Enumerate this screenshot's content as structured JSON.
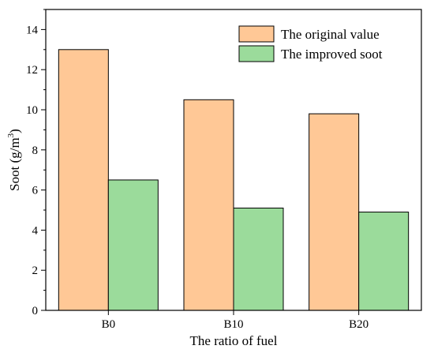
{
  "chart_data": {
    "type": "bar",
    "title": "",
    "xlabel": "The ratio of fuel",
    "ylabel": "Soot (g/m",
    "ylabel_sup": "3",
    "ylabel_end": ")",
    "categories": [
      "B0",
      "B10",
      "B20"
    ],
    "series": [
      {
        "name": "The original value",
        "values": [
          13.0,
          10.5,
          9.8
        ],
        "color": "#FFC896"
      },
      {
        "name": "The improved soot",
        "values": [
          6.5,
          5.1,
          4.9
        ],
        "color": "#9BDB9B"
      }
    ],
    "ylim": [
      0,
      15
    ],
    "yticks": [
      "0",
      "2",
      "4",
      "6",
      "8",
      "10",
      "12",
      "14"
    ],
    "grid": false,
    "legend_position": "top-right"
  }
}
